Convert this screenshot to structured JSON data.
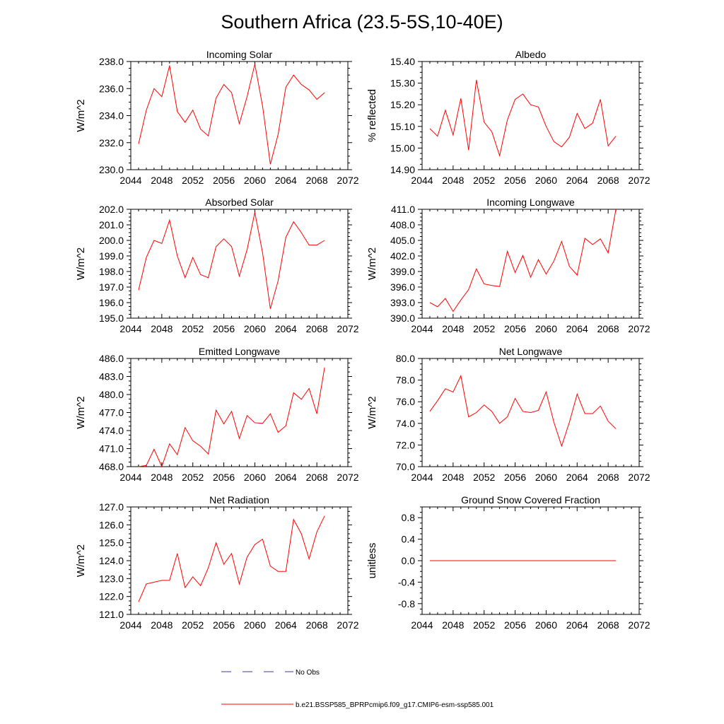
{
  "figure": {
    "title": "Southern Africa (23.5-5S,10-40E)",
    "legend": [
      {
        "label": "No Obs",
        "color": "#3a3aa0",
        "dash": true
      },
      {
        "label": "b.e21.BSSP585_BPRPcmip6.f09_g17.CMIP6-esm-ssp585.001",
        "color": "#ff0000",
        "dash": false
      }
    ]
  },
  "chart_data": [
    {
      "type": "line",
      "title": "Incoming Solar",
      "xlabel": "",
      "ylabel": "W/m^2",
      "xlim": [
        2044,
        2072
      ],
      "ylim": [
        230,
        238
      ],
      "x_ticks": [
        2044,
        2048,
        2052,
        2056,
        2060,
        2064,
        2068,
        2072
      ],
      "x_tick_labels": [
        "2044",
        "2048",
        "2052",
        "2056",
        "2060",
        "2064",
        "2068",
        "2072"
      ],
      "y_ticks": [
        230,
        232,
        234,
        236,
        238
      ],
      "y_tick_labels": [
        "230.0",
        "232.0",
        "234.0",
        "236.0",
        "238.0"
      ],
      "x": [
        2045,
        2046,
        2047,
        2048,
        2049,
        2050,
        2051,
        2052,
        2053,
        2054,
        2055,
        2056,
        2057,
        2058,
        2059,
        2060,
        2061,
        2062,
        2063,
        2064,
        2065,
        2066,
        2067,
        2068,
        2069
      ],
      "series": [
        {
          "color": "#ff0000",
          "values": [
            231.9,
            234.4,
            236.0,
            235.4,
            237.7,
            234.3,
            233.5,
            234.4,
            233.0,
            232.5,
            235.3,
            236.3,
            235.7,
            233.4,
            235.4,
            237.8,
            234.7,
            230.4,
            232.6,
            236.1,
            237.0,
            236.3,
            235.9,
            235.2,
            235.7
          ]
        }
      ]
    },
    {
      "type": "line",
      "title": "Albedo",
      "xlabel": "",
      "ylabel": "% reflected",
      "xlim": [
        2044,
        2072
      ],
      "ylim": [
        14.9,
        15.4
      ],
      "x_ticks": [
        2044,
        2048,
        2052,
        2056,
        2060,
        2064,
        2068,
        2072
      ],
      "x_tick_labels": [
        "2044",
        "2048",
        "2052",
        "2056",
        "2060",
        "2064",
        "2068",
        "2072"
      ],
      "y_ticks": [
        14.9,
        15.0,
        15.1,
        15.2,
        15.3,
        15.4
      ],
      "y_tick_labels": [
        "14.90",
        "15.00",
        "15.10",
        "15.20",
        "15.30",
        "15.40"
      ],
      "x": [
        2045,
        2046,
        2047,
        2048,
        2049,
        2050,
        2051,
        2052,
        2053,
        2054,
        2055,
        2056,
        2057,
        2058,
        2059,
        2060,
        2061,
        2062,
        2063,
        2064,
        2065,
        2066,
        2067,
        2068,
        2069
      ],
      "series": [
        {
          "color": "#ff0000",
          "values": [
            15.09,
            15.055,
            15.175,
            15.06,
            15.23,
            14.99,
            15.315,
            15.12,
            15.075,
            14.965,
            15.13,
            15.225,
            15.25,
            15.2,
            15.19,
            15.1,
            15.03,
            15.005,
            15.05,
            15.16,
            15.09,
            15.115,
            15.225,
            15.01,
            15.055
          ]
        }
      ]
    },
    {
      "type": "line",
      "title": "Absorbed Solar",
      "xlabel": "",
      "ylabel": "W/m^2",
      "xlim": [
        2044,
        2072
      ],
      "ylim": [
        195,
        202
      ],
      "x_ticks": [
        2044,
        2048,
        2052,
        2056,
        2060,
        2064,
        2068,
        2072
      ],
      "x_tick_labels": [
        "2044",
        "2048",
        "2052",
        "2056",
        "2060",
        "2064",
        "2068",
        "2072"
      ],
      "y_ticks": [
        195,
        196,
        197,
        198,
        199,
        200,
        201,
        202
      ],
      "y_tick_labels": [
        "195.0",
        "196.0",
        "197.0",
        "198.0",
        "199.0",
        "200.0",
        "201.0",
        "202.0"
      ],
      "x": [
        2045,
        2046,
        2047,
        2048,
        2049,
        2050,
        2051,
        2052,
        2053,
        2054,
        2055,
        2056,
        2057,
        2058,
        2059,
        2060,
        2061,
        2062,
        2063,
        2064,
        2065,
        2066,
        2067,
        2068,
        2069
      ],
      "series": [
        {
          "color": "#ff0000",
          "values": [
            196.8,
            198.9,
            200.0,
            199.8,
            201.3,
            199.0,
            197.6,
            198.9,
            197.8,
            197.6,
            199.6,
            200.1,
            199.6,
            197.7,
            199.4,
            201.8,
            199.2,
            195.6,
            197.4,
            200.2,
            201.2,
            200.5,
            199.7,
            199.7,
            200.0
          ]
        }
      ]
    },
    {
      "type": "line",
      "title": "Incoming Longwave",
      "xlabel": "",
      "ylabel": "W/m^2",
      "xlim": [
        2044,
        2072
      ],
      "ylim": [
        390,
        411
      ],
      "x_ticks": [
        2044,
        2048,
        2052,
        2056,
        2060,
        2064,
        2068,
        2072
      ],
      "x_tick_labels": [
        "2044",
        "2048",
        "2052",
        "2056",
        "2060",
        "2064",
        "2068",
        "2072"
      ],
      "y_ticks": [
        390,
        393,
        396,
        399,
        402,
        405,
        408,
        411
      ],
      "y_tick_labels": [
        "390.0",
        "393.0",
        "396.0",
        "399.0",
        "402.0",
        "405.0",
        "408.0",
        "411.0"
      ],
      "x": [
        2045,
        2046,
        2047,
        2048,
        2049,
        2050,
        2051,
        2052,
        2053,
        2054,
        2055,
        2056,
        2057,
        2058,
        2059,
        2060,
        2061,
        2062,
        2063,
        2064,
        2065,
        2066,
        2067,
        2068,
        2069
      ],
      "series": [
        {
          "color": "#ff0000",
          "values": [
            393.0,
            392.2,
            393.8,
            391.3,
            393.5,
            395.5,
            399.5,
            396.6,
            396.3,
            396.1,
            402.9,
            398.8,
            402.1,
            397.9,
            401.3,
            398.5,
            401.0,
            404.8,
            400.0,
            398.3,
            405.4,
            404.2,
            405.3,
            402.6,
            411.0
          ]
        }
      ]
    },
    {
      "type": "line",
      "title": "Emitted Longwave",
      "xlabel": "",
      "ylabel": "W/m^2",
      "xlim": [
        2044,
        2072
      ],
      "ylim": [
        468,
        486
      ],
      "x_ticks": [
        2044,
        2048,
        2052,
        2056,
        2060,
        2064,
        2068,
        2072
      ],
      "x_tick_labels": [
        "2044",
        "2048",
        "2052",
        "2056",
        "2060",
        "2064",
        "2068",
        "2072"
      ],
      "y_ticks": [
        468,
        471,
        474,
        477,
        480,
        483,
        486
      ],
      "y_tick_labels": [
        "468.0",
        "471.0",
        "474.0",
        "477.0",
        "480.0",
        "483.0",
        "486.0"
      ],
      "x": [
        2045,
        2046,
        2047,
        2048,
        2049,
        2050,
        2051,
        2052,
        2053,
        2054,
        2055,
        2056,
        2057,
        2058,
        2059,
        2060,
        2061,
        2062,
        2063,
        2064,
        2065,
        2066,
        2067,
        2068,
        2069
      ],
      "series": [
        {
          "color": "#ff0000",
          "values": [
            468.0,
            468.2,
            470.9,
            468.0,
            471.8,
            470.0,
            474.5,
            472.3,
            471.4,
            470.1,
            477.4,
            475.1,
            477.2,
            472.7,
            476.5,
            475.3,
            475.2,
            476.8,
            473.7,
            474.8,
            480.3,
            479.2,
            481.0,
            476.8,
            484.5
          ]
        }
      ]
    },
    {
      "type": "line",
      "title": "Net Longwave",
      "xlabel": "",
      "ylabel": "W/m^2",
      "xlim": [
        2044,
        2072
      ],
      "ylim": [
        70,
        80
      ],
      "x_ticks": [
        2044,
        2048,
        2052,
        2056,
        2060,
        2064,
        2068,
        2072
      ],
      "x_tick_labels": [
        "2044",
        "2048",
        "2052",
        "2056",
        "2060",
        "2064",
        "2068",
        "2072"
      ],
      "y_ticks": [
        70,
        72,
        74,
        76,
        78,
        80
      ],
      "y_tick_labels": [
        "70.0",
        "72.0",
        "74.0",
        "76.0",
        "78.0",
        "80.0"
      ],
      "x": [
        2045,
        2046,
        2047,
        2048,
        2049,
        2050,
        2051,
        2052,
        2053,
        2054,
        2055,
        2056,
        2057,
        2058,
        2059,
        2060,
        2061,
        2062,
        2063,
        2064,
        2065,
        2066,
        2067,
        2068,
        2069
      ],
      "series": [
        {
          "color": "#ff0000",
          "values": [
            75.1,
            76.1,
            77.2,
            76.9,
            78.4,
            74.6,
            75.0,
            75.7,
            75.1,
            74.0,
            74.6,
            76.3,
            75.1,
            75.0,
            75.2,
            76.9,
            74.1,
            71.9,
            74.1,
            76.7,
            74.9,
            74.9,
            75.6,
            74.2,
            73.5
          ]
        }
      ]
    },
    {
      "type": "line",
      "title": "Net Radiation",
      "xlabel": "",
      "ylabel": "W/m^2",
      "xlim": [
        2044,
        2072
      ],
      "ylim": [
        121,
        127
      ],
      "x_ticks": [
        2044,
        2048,
        2052,
        2056,
        2060,
        2064,
        2068,
        2072
      ],
      "x_tick_labels": [
        "2044",
        "2048",
        "2052",
        "2056",
        "2060",
        "2064",
        "2068",
        "2072"
      ],
      "y_ticks": [
        121,
        122,
        123,
        124,
        125,
        126,
        127
      ],
      "y_tick_labels": [
        "121.0",
        "122.0",
        "123.0",
        "124.0",
        "125.0",
        "126.0",
        "127.0"
      ],
      "x": [
        2045,
        2046,
        2047,
        2048,
        2049,
        2050,
        2051,
        2052,
        2053,
        2054,
        2055,
        2056,
        2057,
        2058,
        2059,
        2060,
        2061,
        2062,
        2063,
        2064,
        2065,
        2066,
        2067,
        2068,
        2069
      ],
      "series": [
        {
          "color": "#ff0000",
          "values": [
            121.7,
            122.7,
            122.8,
            122.9,
            122.9,
            124.4,
            122.5,
            123.1,
            122.6,
            123.6,
            125.0,
            123.8,
            124.4,
            122.7,
            124.2,
            124.9,
            125.2,
            123.7,
            123.4,
            123.4,
            126.3,
            125.5,
            124.1,
            125.6,
            126.5
          ]
        }
      ]
    },
    {
      "type": "line",
      "title": "Ground Snow Covered Fraction",
      "xlabel": "",
      "ylabel": "unitless",
      "xlim": [
        2044,
        2072
      ],
      "ylim": [
        -1.0,
        1.0
      ],
      "x_ticks": [
        2044,
        2048,
        2052,
        2056,
        2060,
        2064,
        2068,
        2072
      ],
      "x_tick_labels": [
        "2044",
        "2048",
        "2052",
        "2056",
        "2060",
        "2064",
        "2068",
        "2072"
      ],
      "y_ticks": [
        -0.8,
        -0.4,
        0.0,
        0.4,
        0.8
      ],
      "y_tick_labels": [
        "-0.8",
        "-0.4",
        "0.0",
        "0.4",
        "0.8"
      ],
      "x": [
        2045,
        2046,
        2047,
        2048,
        2049,
        2050,
        2051,
        2052,
        2053,
        2054,
        2055,
        2056,
        2057,
        2058,
        2059,
        2060,
        2061,
        2062,
        2063,
        2064,
        2065,
        2066,
        2067,
        2068,
        2069
      ],
      "series": [
        {
          "color": "#ff0000",
          "values": [
            0,
            0,
            0,
            0,
            0,
            0,
            0,
            0,
            0,
            0,
            0,
            0,
            0,
            0,
            0,
            0,
            0,
            0,
            0,
            0,
            0,
            0,
            0,
            0,
            0
          ]
        }
      ]
    }
  ]
}
